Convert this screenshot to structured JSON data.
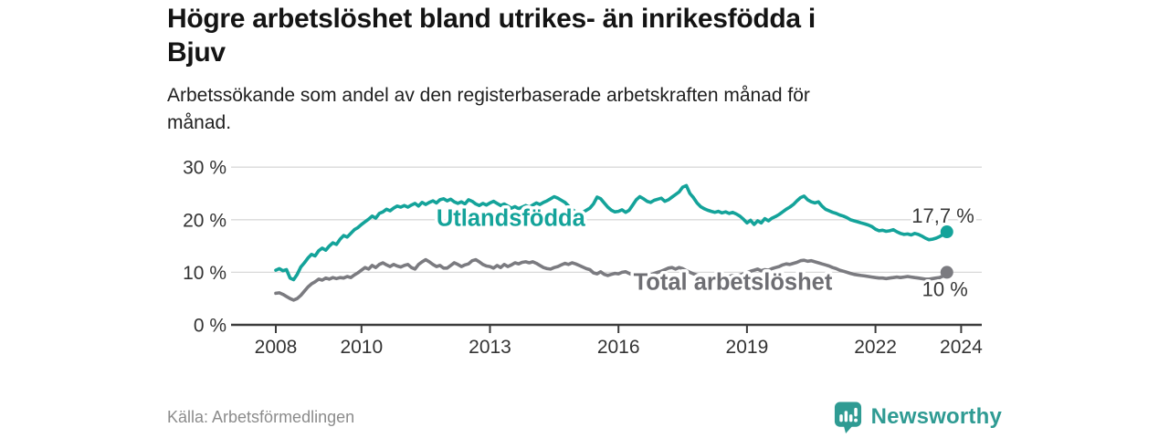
{
  "header": {
    "title_lines": [
      "Högre arbetslöshet bland utrikes- än inrikesfödda i",
      "Bjuv"
    ],
    "subtitle_lines": [
      "Arbetssökande som andel av den registerbaserade arbetskraften månad för",
      "månad."
    ]
  },
  "chart_data": {
    "type": "line",
    "title": "Högre arbetslöshet bland utrikes- än inrikesfödda i Bjuv",
    "x_unit": "month",
    "x_range": [
      "2008-01",
      "2023-09"
    ],
    "ylim": [
      0,
      30
    ],
    "grid": "horizontal",
    "legend_position": "inline-labels",
    "y_ticks": [
      {
        "value": 0,
        "label": "0 %"
      },
      {
        "value": 10,
        "label": "10 %"
      },
      {
        "value": 20,
        "label": "20 %"
      },
      {
        "value": 30,
        "label": "30 %"
      }
    ],
    "x_ticks": [
      {
        "year": 2008,
        "label": "2008"
      },
      {
        "year": 2010,
        "label": "2010"
      },
      {
        "year": 2013,
        "label": "2013"
      },
      {
        "year": 2016,
        "label": "2016"
      },
      {
        "year": 2019,
        "label": "2019"
      },
      {
        "year": 2022,
        "label": "2022"
      },
      {
        "year": 2024,
        "label": "2024"
      }
    ],
    "series": [
      {
        "name": "Utlandsfödda",
        "color": "#14a39a",
        "label_color": "#14a39a",
        "end_label": "17,7 %",
        "latest_value": 17.7,
        "values": [
          10.4,
          10.7,
          10.3,
          10.5,
          8.9,
          8.6,
          9.6,
          11.0,
          11.8,
          12.7,
          13.4,
          13.1,
          14.1,
          14.6,
          14.2,
          15.0,
          15.6,
          15.3,
          16.3,
          17.0,
          16.7,
          17.4,
          18.1,
          18.5,
          19.1,
          19.6,
          20.1,
          20.7,
          20.3,
          21.2,
          21.5,
          22.0,
          21.7,
          22.2,
          22.6,
          22.4,
          22.7,
          22.4,
          22.8,
          23.1,
          22.6,
          23.3,
          22.9,
          23.3,
          23.6,
          23.2,
          23.8,
          24.0,
          23.6,
          23.9,
          23.4,
          23.1,
          23.4,
          23.0,
          23.8,
          23.5,
          23.0,
          22.7,
          23.1,
          22.8,
          23.2,
          23.5,
          23.1,
          22.7,
          23.0,
          22.6,
          22.2,
          22.5,
          22.1,
          22.4,
          22.7,
          22.4,
          22.8,
          23.2,
          22.9,
          23.3,
          23.6,
          24.0,
          24.4,
          24.1,
          23.7,
          23.3,
          22.6,
          22.0,
          21.5,
          21.0,
          21.4,
          21.8,
          22.2,
          23.0,
          24.3,
          24.0,
          23.2,
          22.4,
          21.8,
          21.5,
          21.6,
          21.9,
          21.4,
          21.8,
          22.8,
          23.8,
          24.4,
          24.0,
          23.5,
          23.3,
          23.7,
          23.9,
          24.1,
          23.5,
          23.8,
          24.3,
          24.8,
          25.3,
          26.2,
          26.5,
          25.0,
          24.2,
          23.2,
          22.5,
          22.1,
          21.8,
          21.6,
          21.4,
          21.6,
          21.3,
          21.5,
          21.2,
          21.4,
          21.1,
          20.7,
          20.1,
          19.4,
          19.9,
          19.1,
          19.8,
          19.4,
          20.2,
          19.8,
          20.3,
          20.6,
          21.0,
          21.5,
          22.0,
          22.4,
          22.9,
          23.6,
          24.2,
          24.5,
          23.8,
          23.4,
          23.2,
          23.4,
          22.6,
          22.0,
          21.7,
          21.4,
          21.2,
          20.9,
          20.7,
          20.4,
          20.0,
          19.8,
          19.6,
          19.4,
          19.2,
          19.0,
          18.7,
          18.2,
          17.9,
          18.0,
          17.8,
          17.9,
          18.1,
          17.7,
          17.4,
          17.2,
          17.3,
          17.1,
          17.4,
          17.2,
          16.9,
          16.5,
          16.2,
          16.3,
          16.5,
          16.8,
          17.2,
          17.7
        ]
      },
      {
        "name": "Total arbetslöshet",
        "color": "#7b7b80",
        "label_color": "#6e6e73",
        "end_label": "10 %",
        "latest_value": 10.0,
        "values": [
          6.0,
          6.1,
          5.8,
          5.4,
          5.0,
          4.7,
          5.0,
          5.6,
          6.4,
          7.2,
          7.8,
          8.2,
          8.7,
          8.5,
          8.9,
          8.7,
          9.0,
          8.8,
          9.0,
          8.9,
          9.2,
          9.0,
          9.5,
          9.9,
          10.4,
          10.9,
          10.6,
          11.3,
          10.9,
          11.5,
          11.8,
          11.4,
          11.1,
          11.5,
          11.2,
          11.0,
          11.3,
          11.5,
          10.9,
          10.6,
          11.5,
          12.0,
          12.4,
          12.0,
          11.5,
          11.1,
          11.3,
          10.8,
          10.8,
          11.3,
          11.8,
          11.5,
          11.1,
          11.4,
          11.6,
          12.2,
          12.4,
          12.0,
          11.5,
          11.2,
          11.1,
          10.8,
          11.3,
          10.9,
          11.5,
          11.1,
          11.4,
          11.8,
          11.6,
          11.9,
          12.0,
          11.8,
          12.0,
          11.7,
          11.3,
          10.9,
          10.7,
          10.6,
          10.9,
          11.1,
          11.4,
          11.7,
          11.5,
          11.8,
          11.6,
          11.3,
          11.0,
          10.7,
          10.5,
          9.9,
          9.7,
          10.1,
          9.6,
          9.4,
          9.6,
          9.8,
          9.7,
          10.0,
          10.1,
          9.8,
          9.5,
          9.3,
          9.1,
          8.9,
          9.2,
          9.5,
          9.8,
          10.0,
          10.2,
          10.5,
          10.8,
          10.9,
          10.6,
          10.9,
          10.7,
          10.3,
          10.0,
          9.7,
          9.5,
          9.3,
          9.2,
          9.0,
          8.9,
          9.1,
          9.0,
          8.8,
          9.0,
          9.2,
          9.4,
          9.3,
          9.5,
          9.7,
          9.9,
          10.2,
          10.4,
          10.6,
          10.3,
          10.5,
          10.4,
          10.7,
          10.9,
          11.1,
          11.4,
          11.6,
          11.5,
          11.7,
          11.9,
          12.2,
          12.3,
          12.1,
          12.2,
          12.0,
          11.8,
          11.6,
          11.4,
          11.2,
          10.9,
          10.7,
          10.4,
          10.2,
          10.0,
          9.8,
          9.6,
          9.5,
          9.4,
          9.3,
          9.2,
          9.1,
          9.0,
          8.9,
          8.9,
          8.8,
          8.9,
          9.0,
          9.1,
          9.0,
          9.1,
          9.2,
          9.1,
          9.0,
          8.9,
          8.8,
          8.7,
          8.7,
          8.8,
          8.9,
          9.0,
          9.3,
          10.0
        ]
      }
    ],
    "series_labels": [
      {
        "text": "Utlandsfödda",
        "x_year": 2011.75,
        "y_value": 18.8,
        "color": "#14a39a"
      },
      {
        "text": "Total arbetslöshet",
        "x_year": 2016.35,
        "y_value": 6.7,
        "color": "#6e6e73"
      }
    ],
    "end_label_color": "#383838",
    "grid_color": "#d9d9d9",
    "axis_color": "#3c3c3c",
    "tick_label_color": "#333333"
  },
  "footer": {
    "source": "Källa: Arbetsförmedlingen",
    "brand": "Newsworthy",
    "brand_color": "#2f9b93"
  }
}
